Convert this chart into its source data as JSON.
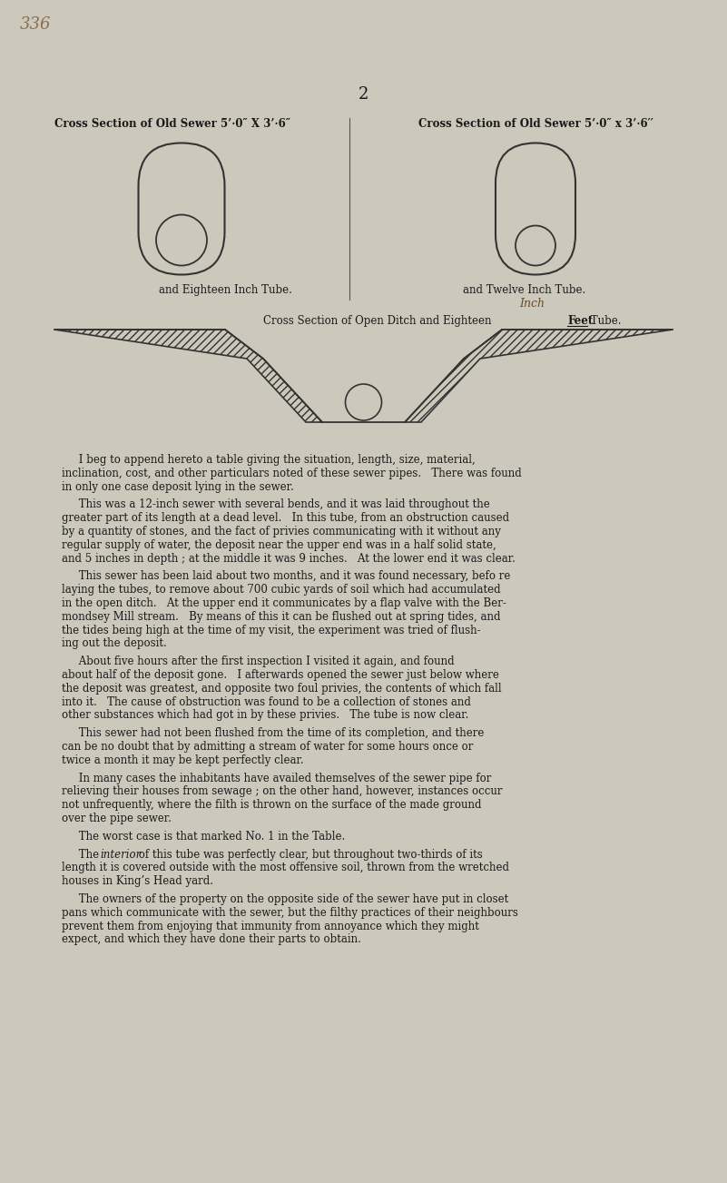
{
  "bg_color": "#ccc9bc",
  "text_color": "#1a1a1a",
  "page_number": "2",
  "corner_label": "336",
  "title1": "Cross Section of Old Sewer 5’·0″ X 3’·6″",
  "title2": "Cross Section of Old Sewer 5’·0″ x 3’·6′′",
  "subtitle1": "and Eighteen Inch Tube.",
  "subtitle2": "and Twelve Inch Tube.",
  "subtitle3": "Inch",
  "ditch_title_pre": "Cross Section of Open Ditch and Eighteen ",
  "ditch_title_bold": "Feet",
  "ditch_title_post": " Tube.",
  "paragraphs": [
    {
      "lines": [
        "     I beg to append hereto a table giving the situation, length, size, material,",
        "inclination, cost, and other particulars noted of these sewer pipes.   There was found",
        "in only one case deposit lying in the sewer."
      ]
    },
    {
      "lines": [
        "     This was a 12-inch sewer with several bends, and it was laid throughout the",
        "greater part of its length at a dead level.   In this tube, from an obstruction caused",
        "by a quantity of stones, and the fact of privies communicating with it without any",
        "regular supply of water, the deposit near the upper end was in a half solid state,",
        "and 5 inches in depth ; at the middle it was 9 inches.   At the lower end it was clear."
      ]
    },
    {
      "lines": [
        "     This sewer has been laid about two months, and it was found necessary, befo re",
        "laying the tubes, to remove about 700 cubic yards of soil which had accumulated",
        "in the open ditch.   At the upper end it communicates by a flap valve with the Ber-",
        "mondsey Mill stream.   By means of this it can be flushed out at spring tides, and",
        "the tides being high at the time of my visit, the experiment was tried of flush-",
        "ing out the deposit."
      ]
    },
    {
      "lines": [
        "     About five hours after the first inspection I visited it again, and found",
        "about half of the deposit gone.   I afterwards opened the sewer just below where",
        "the deposit was greatest, and opposite two foul privies, the contents of which fall",
        "into it.   The cause of obstruction was found to be a collection of stones and",
        "other substances which had got in by these privies.   The tube is now clear."
      ]
    },
    {
      "lines": [
        "     This sewer had not been flushed from the time of its completion, and there",
        "can be no doubt that by admitting a stream of water for some hours once or",
        "twice a month it may be kept perfectly clear."
      ]
    },
    {
      "lines": [
        "     In many cases the inhabitants have availed themselves of the sewer pipe for",
        "relieving their houses from sewage ; on the other hand, however, instances occur",
        "not unfrequently, where the filth is thrown on the surface of the made ground",
        "over the pipe sewer."
      ]
    },
    {
      "lines": [
        "     The worst case is that marked No. 1 in the Table."
      ]
    },
    {
      "lines": [
        "     The {italic}interior{/italic} of this tube was perfectly clear, but throughout two-thirds of its",
        "length it is covered outside with the most offensive soil, thrown from the wretched",
        "houses in King’s Head yard."
      ]
    },
    {
      "lines": [
        "     The owners of the property on the opposite side of the sewer have put in closet",
        "pans which communicate with the sewer, but the filthy practices of their neighbours",
        "prevent them from enjoying that immunity from annoyance which they might",
        "expect, and which they have done their parts to obtain."
      ]
    }
  ]
}
